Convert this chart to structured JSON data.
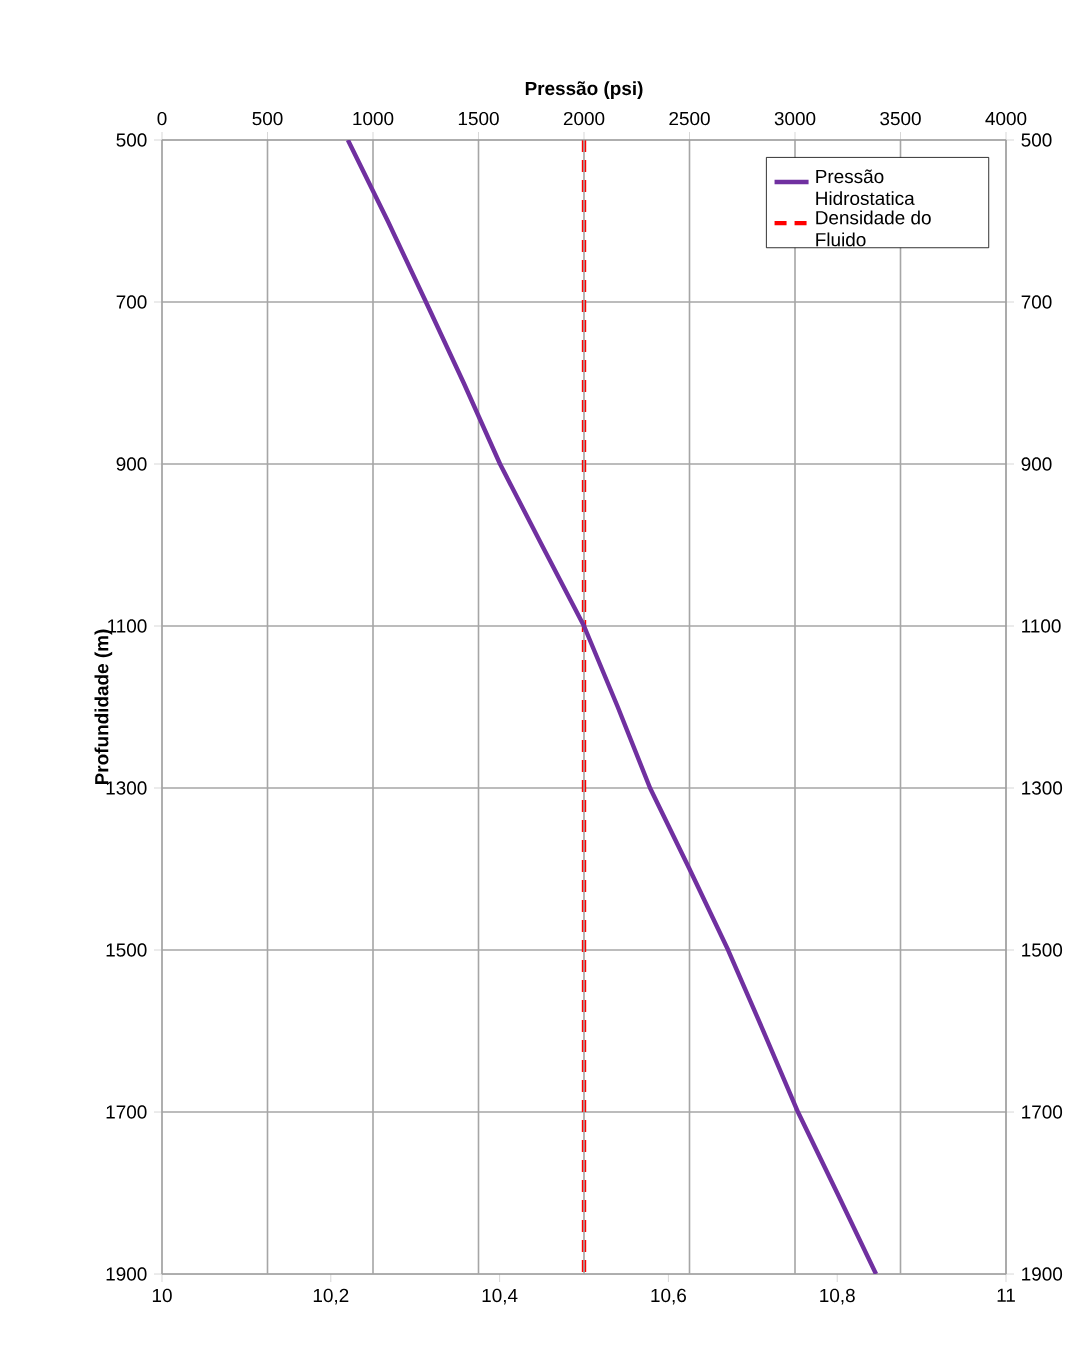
{
  "chart_data": {
    "type": "line",
    "x2label": "Pressão (psi)",
    "ylabel": "Profundidade (m)",
    "xlim": [
      10,
      11
    ],
    "xticks": [
      10,
      {
        "value": 10.2,
        "label": "10,2"
      },
      {
        "value": 10.4,
        "label": "10,4"
      },
      {
        "value": 10.6,
        "label": "10,6"
      },
      {
        "value": 10.8,
        "label": "10,8"
      },
      11
    ],
    "x2lim": [
      0,
      4000
    ],
    "x2ticks": [
      0,
      500,
      1000,
      1500,
      2000,
      2500,
      3000,
      3500,
      4000
    ],
    "ylim": [
      1900,
      500
    ],
    "yticks": [
      500,
      700,
      900,
      1100,
      1300,
      1500,
      1700,
      1900
    ],
    "y2lim": [
      1900,
      500
    ],
    "y2ticks": [
      500,
      700,
      900,
      1100,
      1300,
      1500,
      1700,
      1900
    ],
    "grid": true,
    "legend": "top right",
    "series": [
      {
        "name": "Pressão Hidrostatica",
        "color": "#7030a0",
        "axis": "x2",
        "line_style": "solid",
        "x": [
          881,
          1070,
          1251,
          1430,
          1602,
          1800,
          2000,
          2160,
          2313,
          2500,
          2683,
          2850,
          3014,
          3200,
          3384
        ],
        "values": [
          500,
          600,
          700,
          800,
          900,
          1000,
          1100,
          1200,
          1300,
          1400,
          1500,
          1600,
          1700,
          1800,
          1900
        ]
      },
      {
        "name": "Densidade do Fluido",
        "color": "#ff0000",
        "line_style": "dashed",
        "x": [
          10.5,
          10.5
        ],
        "values": [
          500,
          1900
        ]
      }
    ]
  }
}
